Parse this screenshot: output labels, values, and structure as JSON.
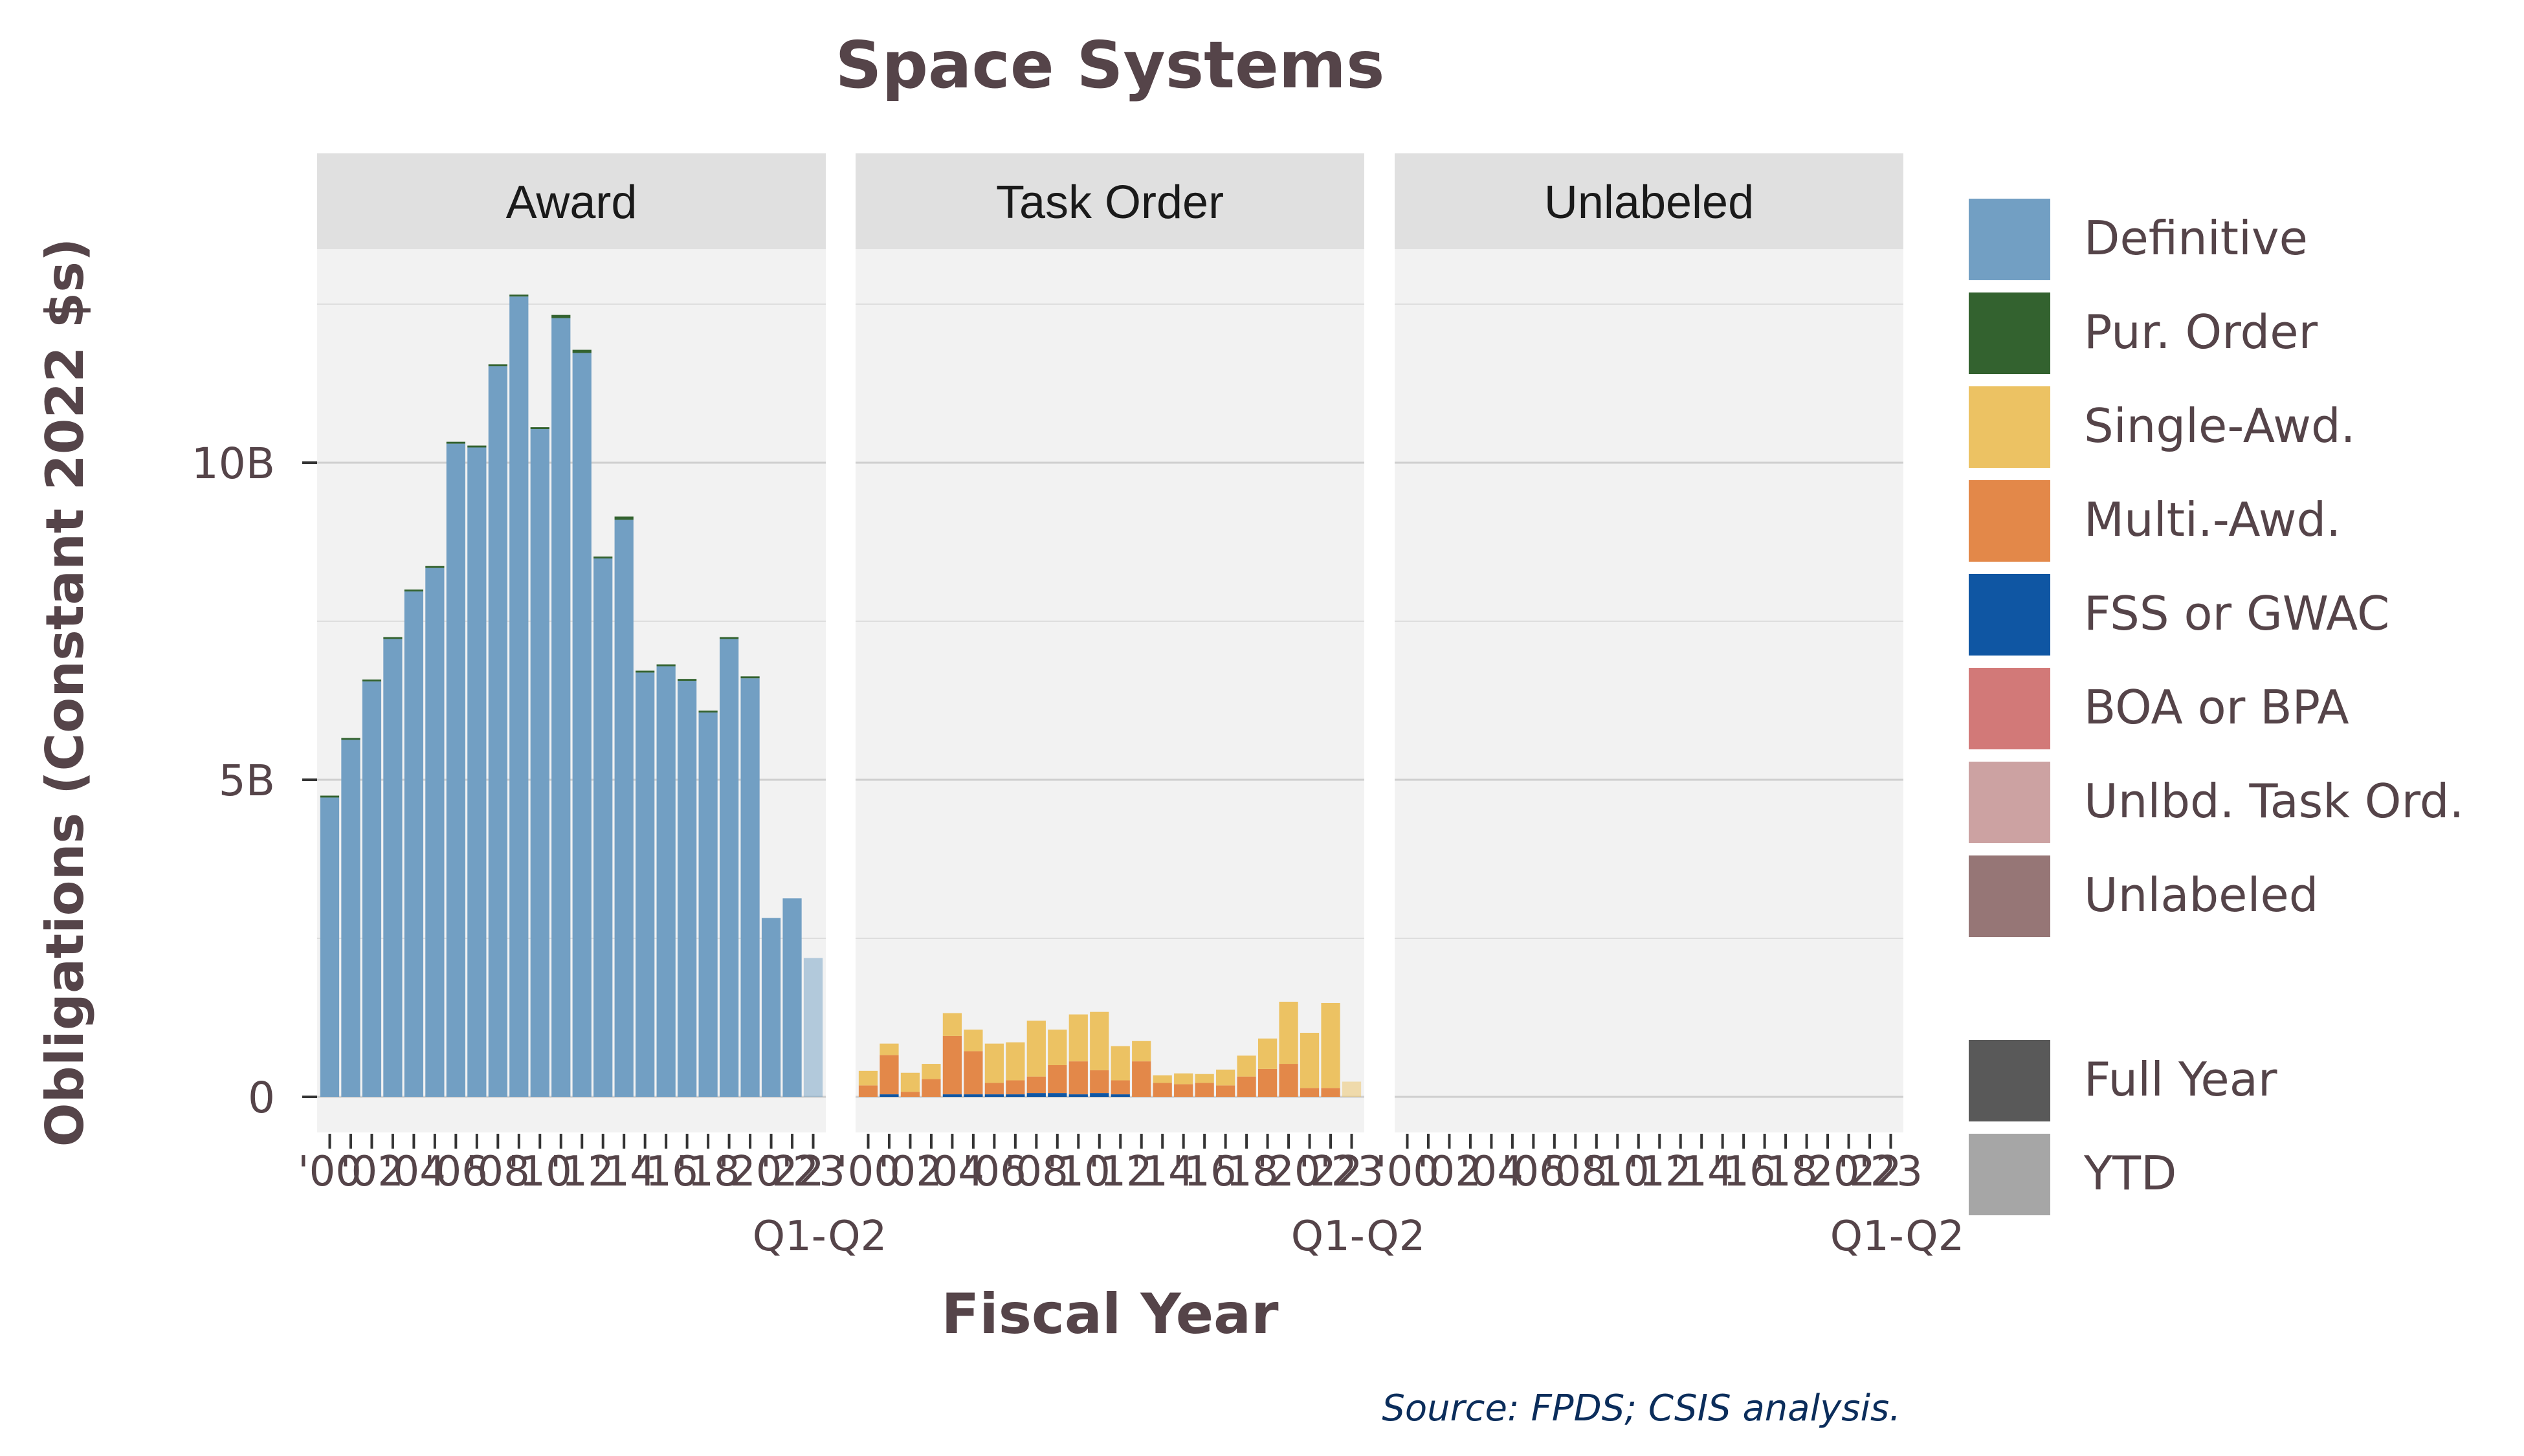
{
  "chart_data": {
    "type": "bar",
    "title": "Space Systems",
    "xlabel": "Fiscal Year",
    "ylabel": "Obligations (Constant 2022 $s)",
    "source": "Source: FPDS; CSIS analysis.",
    "ylim": [
      0,
      14
    ],
    "yticks": [
      {
        "value": 0,
        "label": "0"
      },
      {
        "value": 5,
        "label": "5B"
      },
      {
        "value": 10,
        "label": "10B"
      }
    ],
    "x_tick_labels": [
      "'00",
      "'02",
      "'04",
      "'06",
      "'08",
      "'10",
      "'12",
      "'14",
      "'16",
      "'18",
      "'20",
      "'22",
      "'23"
    ],
    "x_tick_sublabel": "Q1-Q2",
    "categories": [
      "2000",
      "2001",
      "2002",
      "2003",
      "2004",
      "2005",
      "2006",
      "2007",
      "2008",
      "2009",
      "2010",
      "2011",
      "2012",
      "2013",
      "2014",
      "2015",
      "2016",
      "2017",
      "2018",
      "2019",
      "2020",
      "2021",
      "2022",
      "2023"
    ],
    "period": [
      "Full Year",
      "Full Year",
      "Full Year",
      "Full Year",
      "Full Year",
      "Full Year",
      "Full Year",
      "Full Year",
      "Full Year",
      "Full Year",
      "Full Year",
      "Full Year",
      "Full Year",
      "Full Year",
      "Full Year",
      "Full Year",
      "Full Year",
      "Full Year",
      "Full Year",
      "Full Year",
      "Full Year",
      "Full Year",
      "Full Year",
      "YTD"
    ],
    "stack_order": [
      "FSS or GWAC",
      "Pur. Order",
      "Multi.-Awd.",
      "Single-Awd.",
      "Definitive"
    ],
    "colors": {
      "Definitive": "#729fc3",
      "Pur. Order": "#33622f",
      "Single-Awd.": "#ecc263",
      "Multi.-Awd.": "#e38849",
      "FSS or GWAC": "#0f56a3",
      "BOA or BPA": "#d27978",
      "Unlbd. Task Ord.": "#cca2a2",
      "Unlabeled": "#967676",
      "Full Year": "#595959",
      "YTD": "#a6a6a6"
    },
    "legend": {
      "placement": "right",
      "types": [
        "Definitive",
        "Pur. Order",
        "Single-Awd.",
        "Multi.-Awd.",
        "FSS or GWAC",
        "BOA or BPA",
        "Unlbd. Task Ord.",
        "Unlabeled"
      ],
      "periods": [
        "Full Year",
        "YTD"
      ]
    },
    "panels": [
      {
        "name": "Award",
        "series": [
          {
            "name": "Definitive",
            "values": [
              4.72,
              5.63,
              6.55,
              7.22,
              7.97,
              8.34,
              10.3,
              10.24,
              11.52,
              12.62,
              10.53,
              12.28,
              11.73,
              8.49,
              9.1,
              6.69,
              6.79,
              6.56,
              6.06,
              7.22,
              6.6,
              2.82,
              3.13,
              2.19
            ]
          },
          {
            "name": "Pur. Order",
            "values": [
              0.03,
              0.03,
              0.03,
              0.03,
              0.03,
              0.03,
              0.03,
              0.03,
              0.03,
              0.03,
              0.03,
              0.05,
              0.05,
              0.03,
              0.05,
              0.03,
              0.03,
              0.03,
              0.03,
              0.03,
              0.03,
              0,
              0,
              0
            ]
          }
        ]
      },
      {
        "name": "Task Order",
        "series": [
          {
            "name": "FSS or GWAC",
            "values": [
              0,
              0.04,
              0,
              0,
              0.04,
              0.04,
              0.04,
              0.04,
              0.06,
              0.06,
              0.04,
              0.06,
              0.04,
              0,
              0,
              0,
              0,
              0,
              0,
              0,
              0,
              0,
              0,
              0
            ]
          },
          {
            "name": "Multi.-Awd.",
            "values": [
              0.18,
              0.62,
              0.08,
              0.28,
              0.92,
              0.68,
              0.18,
              0.22,
              0.26,
              0.44,
              0.52,
              0.36,
              0.22,
              0.56,
              0.22,
              0.2,
              0.22,
              0.18,
              0.32,
              0.44,
              0.52,
              0.14,
              0.14,
              0
            ]
          },
          {
            "name": "Single-Awd.",
            "values": [
              0.23,
              0.18,
              0.3,
              0.24,
              0.36,
              0.34,
              0.62,
              0.6,
              0.88,
              0.56,
              0.74,
              0.92,
              0.54,
              0.32,
              0.12,
              0.17,
              0.14,
              0.25,
              0.33,
              0.48,
              0.98,
              0.87,
              1.34,
              0.24
            ]
          }
        ]
      },
      {
        "name": "Unlabeled",
        "series": []
      }
    ]
  }
}
